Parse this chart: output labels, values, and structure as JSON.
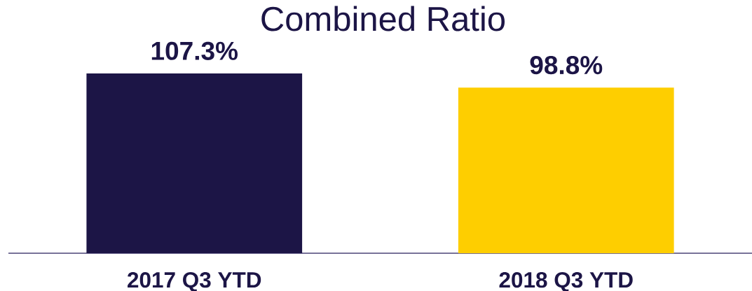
{
  "chart_data": {
    "type": "bar",
    "title": "Combined Ratio",
    "categories": [
      "2017 Q3 YTD",
      "2018 Q3 YTD"
    ],
    "values": [
      107.3,
      98.8
    ],
    "colors": [
      "#1c1546",
      "#fece00"
    ],
    "value_labels": [
      "107.3%",
      "98.8%"
    ]
  }
}
